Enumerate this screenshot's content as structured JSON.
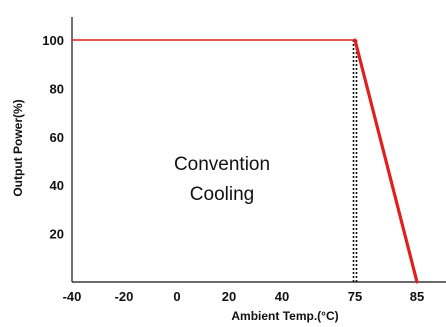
{
  "chart_data": {
    "type": "line",
    "title": "",
    "xlabel": "Ambient Temp.(°C)",
    "ylabel": "Output Power(%)",
    "x_ticks": [
      -40,
      -20,
      0,
      20,
      40,
      75,
      85
    ],
    "y_ticks": [
      20,
      40,
      60,
      80,
      100
    ],
    "series": [
      {
        "name": "",
        "color": "#e02020",
        "points": [
          {
            "x": -40,
            "y": 100
          },
          {
            "x": 75,
            "y": 100
          },
          {
            "x": 85,
            "y": 0
          }
        ]
      }
    ],
    "reference_lines": [
      {
        "x": 75,
        "style": "dotted",
        "color": "#111111"
      }
    ],
    "annotation": {
      "lines": [
        "Convention",
        "Cooling"
      ]
    },
    "grid": false,
    "legend": "none"
  }
}
